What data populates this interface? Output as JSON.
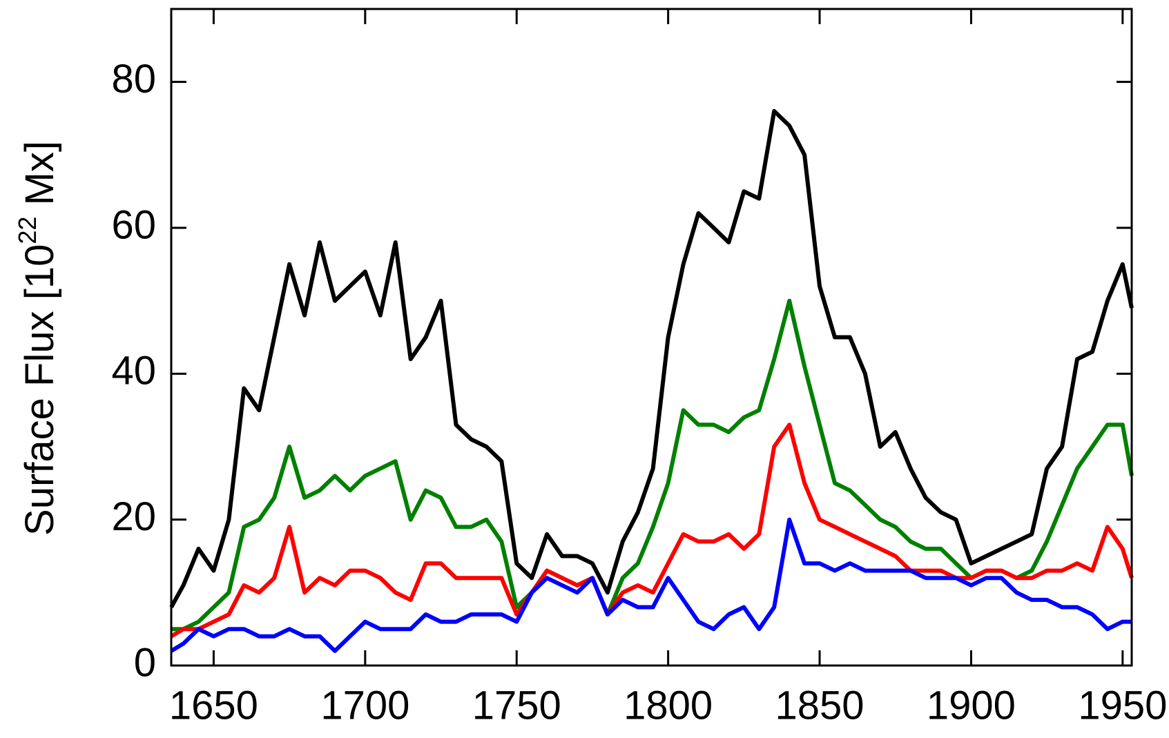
{
  "chart_data": {
    "type": "line",
    "ylabel": {
      "text": "Surface Flux [10",
      "sup": "22",
      "rest": " Mx]"
    },
    "x": [
      1636,
      1640,
      1645,
      1650,
      1655,
      1660,
      1665,
      1670,
      1675,
      1680,
      1685,
      1690,
      1695,
      1700,
      1705,
      1710,
      1715,
      1720,
      1725,
      1730,
      1735,
      1740,
      1745,
      1750,
      1755,
      1760,
      1765,
      1770,
      1775,
      1780,
      1785,
      1790,
      1795,
      1800,
      1805,
      1810,
      1815,
      1820,
      1825,
      1830,
      1835,
      1840,
      1845,
      1850,
      1855,
      1860,
      1865,
      1870,
      1875,
      1880,
      1885,
      1890,
      1895,
      1900,
      1905,
      1910,
      1915,
      1920,
      1925,
      1930,
      1935,
      1940,
      1945,
      1950,
      1953
    ],
    "series": [
      {
        "color": "#000000",
        "values": [
          8,
          11,
          16,
          13,
          20,
          38,
          35,
          45,
          55,
          48,
          58,
          50,
          52,
          54,
          48,
          58,
          42,
          45,
          50,
          33,
          31,
          30,
          28,
          14,
          12,
          18,
          15,
          15,
          14,
          10,
          17,
          21,
          27,
          45,
          55,
          62,
          60,
          58,
          65,
          64,
          76,
          74,
          70,
          52,
          45,
          45,
          40,
          30,
          32,
          27,
          23,
          21,
          20,
          14,
          15,
          16,
          17,
          18,
          27,
          30,
          42,
          43,
          50,
          55,
          49
        ]
      },
      {
        "color": "#008000",
        "values": [
          5,
          5,
          6,
          8,
          10,
          19,
          20,
          23,
          30,
          23,
          24,
          26,
          24,
          26,
          27,
          28,
          20,
          24,
          23,
          19,
          19,
          20,
          17,
          8,
          10,
          13,
          12,
          11,
          12,
          7,
          12,
          14,
          19,
          25,
          35,
          33,
          33,
          32,
          34,
          35,
          42,
          50,
          41,
          33,
          25,
          24,
          22,
          20,
          19,
          17,
          16,
          16,
          14,
          12,
          13,
          13,
          12,
          13,
          17,
          22,
          27,
          30,
          33,
          33,
          26
        ]
      },
      {
        "color": "#ff0000",
        "values": [
          4,
          5,
          5,
          6,
          7,
          11,
          10,
          12,
          19,
          10,
          12,
          11,
          13,
          13,
          12,
          10,
          9,
          14,
          14,
          12,
          12,
          12,
          12,
          7,
          10,
          13,
          12,
          11,
          12,
          7,
          10,
          11,
          10,
          14,
          18,
          17,
          17,
          18,
          16,
          18,
          30,
          33,
          25,
          20,
          19,
          18,
          17,
          16,
          15,
          13,
          13,
          13,
          12,
          12,
          13,
          13,
          12,
          12,
          13,
          13,
          14,
          13,
          19,
          16,
          12
        ]
      },
      {
        "color": "#0000ff",
        "values": [
          2,
          3,
          5,
          4,
          5,
          5,
          4,
          4,
          5,
          4,
          4,
          2,
          4,
          6,
          5,
          5,
          5,
          7,
          6,
          6,
          7,
          7,
          7,
          6,
          10,
          12,
          11,
          10,
          12,
          7,
          9,
          8,
          8,
          12,
          9,
          6,
          5,
          7,
          8,
          5,
          8,
          20,
          14,
          14,
          13,
          14,
          13,
          13,
          13,
          13,
          12,
          12,
          12,
          11,
          12,
          12,
          10,
          9,
          9,
          8,
          8,
          7,
          5,
          6,
          6
        ]
      }
    ],
    "xlim": [
      1636,
      1953
    ],
    "xticks": [
      1650,
      1700,
      1750,
      1800,
      1850,
      1900,
      1950
    ],
    "ylim": [
      0,
      90
    ],
    "yticks": [
      0,
      20,
      40,
      60,
      80
    ]
  }
}
